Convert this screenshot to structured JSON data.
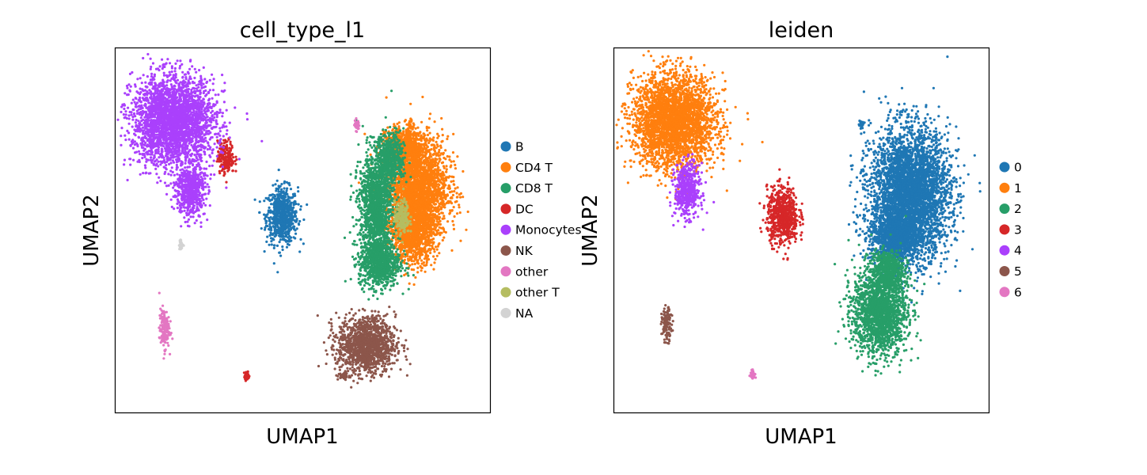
{
  "chart_data": [
    {
      "type": "scatter",
      "title": "cell_type_l1",
      "xlabel": "UMAP1",
      "ylabel": "UMAP2",
      "grid": false,
      "ticks": false,
      "legend": "right",
      "series": [
        {
          "name": "B",
          "color": "#1f77b4",
          "blobs": [
            [
              4.45,
              5.4,
              0.38,
              0.7
            ]
          ]
        },
        {
          "name": "CD4 T",
          "color": "#ff7f0e",
          "blobs": [
            [
              8.05,
              6.2,
              0.75,
              1.25
            ],
            [
              7.7,
              7.35,
              0.45,
              0.45
            ],
            [
              7.95,
              5.0,
              0.55,
              0.8
            ]
          ]
        },
        {
          "name": "CD8 T",
          "color": "#279e68",
          "blobs": [
            [
              6.95,
              5.65,
              0.4,
              1.35
            ],
            [
              7.35,
              6.95,
              0.32,
              0.65
            ],
            [
              7.05,
              4.1,
              0.5,
              0.6
            ]
          ]
        },
        {
          "name": "DC",
          "color": "#d62728",
          "blobs": [
            [
              2.95,
              7.0,
              0.2,
              0.4
            ],
            [
              3.5,
              1.0,
              0.06,
              0.12
            ]
          ]
        },
        {
          "name": "Monocytes",
          "color": "#aa40fc",
          "blobs": [
            [
              1.55,
              8.0,
              1.0,
              1.1
            ],
            [
              2.0,
              6.1,
              0.35,
              0.65
            ]
          ]
        },
        {
          "name": "NK",
          "color": "#8c564b",
          "blobs": [
            [
              6.7,
              1.85,
              0.7,
              0.7
            ],
            [
              6.1,
              1.0,
              0.15,
              0.1
            ]
          ]
        },
        {
          "name": "other",
          "color": "#e377c2",
          "blobs": [
            [
              1.3,
              2.3,
              0.12,
              0.5
            ],
            [
              6.45,
              7.9,
              0.06,
              0.15
            ]
          ]
        },
        {
          "name": "other T",
          "color": "#b5bd61",
          "blobs": [
            [
              7.65,
              5.35,
              0.18,
              0.4
            ]
          ]
        },
        {
          "name": "NA",
          "color": "#d3d3d3",
          "blobs": [
            [
              1.75,
              4.6,
              0.05,
              0.12
            ]
          ]
        }
      ]
    },
    {
      "type": "scatter",
      "title": "leiden",
      "xlabel": "UMAP1",
      "ylabel": "UMAP2",
      "grid": false,
      "ticks": false,
      "legend": "right",
      "series": [
        {
          "name": "0",
          "color": "#1f77b4",
          "blobs": [
            [
              7.9,
              6.0,
              0.95,
              1.6
            ],
            [
              7.5,
              4.8,
              0.6,
              0.6
            ],
            [
              6.6,
              7.9,
              0.06,
              0.15
            ]
          ]
        },
        {
          "name": "1",
          "color": "#ff7f0e",
          "blobs": [
            [
              1.6,
              8.0,
              1.0,
              1.15
            ]
          ]
        },
        {
          "name": "2",
          "color": "#279e68",
          "blobs": [
            [
              7.1,
              2.8,
              0.65,
              1.1
            ],
            [
              7.3,
              3.9,
              0.4,
              0.5
            ]
          ]
        },
        {
          "name": "3",
          "color": "#d62728",
          "blobs": [
            [
              4.5,
              5.4,
              0.38,
              0.7
            ]
          ]
        },
        {
          "name": "4",
          "color": "#aa40fc",
          "blobs": [
            [
              1.95,
              6.1,
              0.3,
              0.65
            ]
          ]
        },
        {
          "name": "5",
          "color": "#8c564b",
          "blobs": [
            [
              1.4,
              2.4,
              0.12,
              0.4
            ]
          ]
        },
        {
          "name": "6",
          "color": "#e377c2",
          "blobs": [
            [
              3.7,
              1.05,
              0.06,
              0.12
            ]
          ]
        }
      ]
    }
  ]
}
